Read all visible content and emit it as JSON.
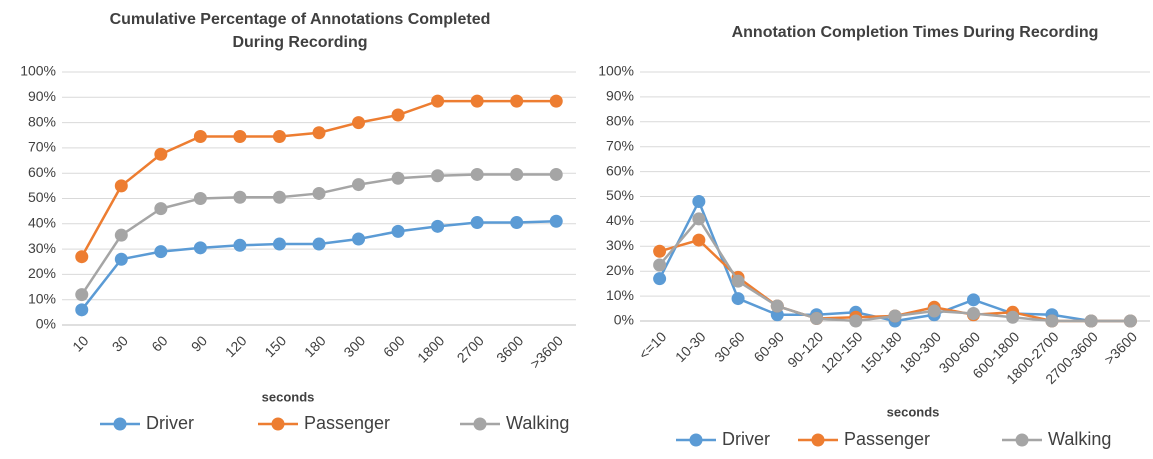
{
  "chart_data": [
    {
      "type": "line",
      "title": [
        "Cumulative Percentage of Annotations Completed",
        "During Recording"
      ],
      "x_label": "seconds",
      "categories": [
        "10",
        "30",
        "60",
        "90",
        "120",
        "150",
        "180",
        "300",
        "600",
        "1800",
        "2700",
        "3600",
        ">3600"
      ],
      "series": [
        {
          "name": "Driver",
          "color": "#5b9bd5",
          "values": [
            6,
            26,
            29,
            30.5,
            31.5,
            32,
            32,
            34,
            37,
            39,
            40.5,
            40.5,
            41
          ]
        },
        {
          "name": "Passenger",
          "color": "#ed7d31",
          "values": [
            27,
            55,
            67.5,
            74.5,
            74.5,
            74.5,
            76,
            80,
            83,
            88.5,
            88.5,
            88.5,
            88.5
          ]
        },
        {
          "name": "Walking",
          "color": "#a5a5a5",
          "values": [
            12,
            35.5,
            46,
            50,
            50.5,
            50.5,
            52,
            55.5,
            58,
            59,
            59.5,
            59.5,
            59.5
          ]
        }
      ],
      "ylim": [
        0,
        100
      ],
      "yticks": [
        {
          "value": 0,
          "label": "0%"
        },
        {
          "value": 10,
          "label": "10%"
        },
        {
          "value": 20,
          "label": "20%"
        },
        {
          "value": 30,
          "label": "30%"
        },
        {
          "value": 40,
          "label": "40%"
        },
        {
          "value": 50,
          "label": "50%"
        },
        {
          "value": 60,
          "label": "60%"
        },
        {
          "value": 70,
          "label": "70%"
        },
        {
          "value": 80,
          "label": "80%"
        },
        {
          "value": 90,
          "label": "90%"
        },
        {
          "value": 100,
          "label": "100%"
        }
      ],
      "grid": true,
      "legend": "bottom"
    },
    {
      "type": "line",
      "title": "Annotation Completion Times During Recording",
      "x_label": "seconds",
      "categories": [
        "<=10",
        "10-30",
        "30-60",
        "60-90",
        "90-120",
        "120-150",
        "150-180",
        "180-300",
        "300-600",
        "600-1800",
        "1800-2700",
        "2700-3600",
        ">3600"
      ],
      "series": [
        {
          "name": "Driver",
          "color": "#5b9bd5",
          "values": [
            17,
            48,
            9,
            2.5,
            2.5,
            3.5,
            0,
            2.5,
            8.5,
            3,
            2.5,
            0,
            0
          ]
        },
        {
          "name": "Passenger",
          "color": "#ed7d31",
          "values": [
            28,
            32.5,
            17.5,
            6,
            1,
            1.5,
            2,
            5.5,
            2.5,
            3.5,
            0,
            0,
            0
          ]
        },
        {
          "name": "Walking",
          "color": "#a5a5a5",
          "values": [
            22.5,
            41,
            16,
            6,
            1,
            0,
            2,
            4,
            3,
            1.5,
            0,
            0,
            0
          ]
        }
      ],
      "ylim": [
        0,
        100
      ],
      "yticks": [
        {
          "value": 0,
          "label": "0%"
        },
        {
          "value": 10,
          "label": "10%"
        },
        {
          "value": 20,
          "label": "20%"
        },
        {
          "value": 30,
          "label": "30%"
        },
        {
          "value": 40,
          "label": "40%"
        },
        {
          "value": 50,
          "label": "50%"
        },
        {
          "value": 60,
          "label": "60%"
        },
        {
          "value": 70,
          "label": "70%"
        },
        {
          "value": 80,
          "label": "80%"
        },
        {
          "value": 90,
          "label": "90%"
        },
        {
          "value": 100,
          "label": "100%"
        }
      ],
      "grid": true,
      "legend": "bottom"
    }
  ]
}
